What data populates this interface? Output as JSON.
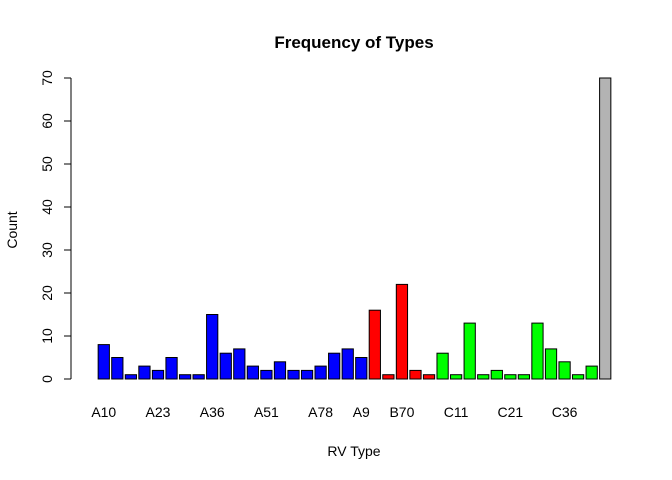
{
  "chart_data": {
    "type": "bar",
    "title": "Frequency of Types",
    "xlabel": "RV Type",
    "ylabel": "Count",
    "ylim": [
      0,
      70
    ],
    "yticks": [
      0,
      10,
      20,
      30,
      40,
      50,
      60,
      70
    ],
    "grid": false,
    "bar_edge_color": "#000000",
    "values": [
      8,
      5,
      1,
      3,
      2,
      5,
      1,
      1,
      15,
      6,
      7,
      3,
      2,
      4,
      2,
      2,
      3,
      6,
      7,
      5,
      16,
      1,
      22,
      2,
      1,
      6,
      1,
      13,
      1,
      2,
      1,
      1,
      13,
      7,
      4,
      1,
      3,
      70
    ],
    "colors": [
      "#0000ff",
      "#0000ff",
      "#0000ff",
      "#0000ff",
      "#0000ff",
      "#0000ff",
      "#0000ff",
      "#0000ff",
      "#0000ff",
      "#0000ff",
      "#0000ff",
      "#0000ff",
      "#0000ff",
      "#0000ff",
      "#0000ff",
      "#0000ff",
      "#0000ff",
      "#0000ff",
      "#0000ff",
      "#0000ff",
      "#ff0000",
      "#ff0000",
      "#ff0000",
      "#ff0000",
      "#ff0000",
      "#00ff00",
      "#00ff00",
      "#00ff00",
      "#00ff00",
      "#00ff00",
      "#00ff00",
      "#00ff00",
      "#00ff00",
      "#00ff00",
      "#00ff00",
      "#00ff00",
      "#00ff00",
      "#b3b3b3"
    ],
    "category_labels": [
      {
        "index": 0,
        "text": "A10"
      },
      {
        "index": 4,
        "text": "A23"
      },
      {
        "index": 8,
        "text": "A36"
      },
      {
        "index": 12,
        "text": "A51"
      },
      {
        "index": 16,
        "text": "A78"
      },
      {
        "index": 19,
        "text": "A9"
      },
      {
        "index": 22,
        "text": "B70"
      },
      {
        "index": 26,
        "text": "C11"
      },
      {
        "index": 30,
        "text": "C21"
      },
      {
        "index": 34,
        "text": "C36"
      }
    ]
  }
}
